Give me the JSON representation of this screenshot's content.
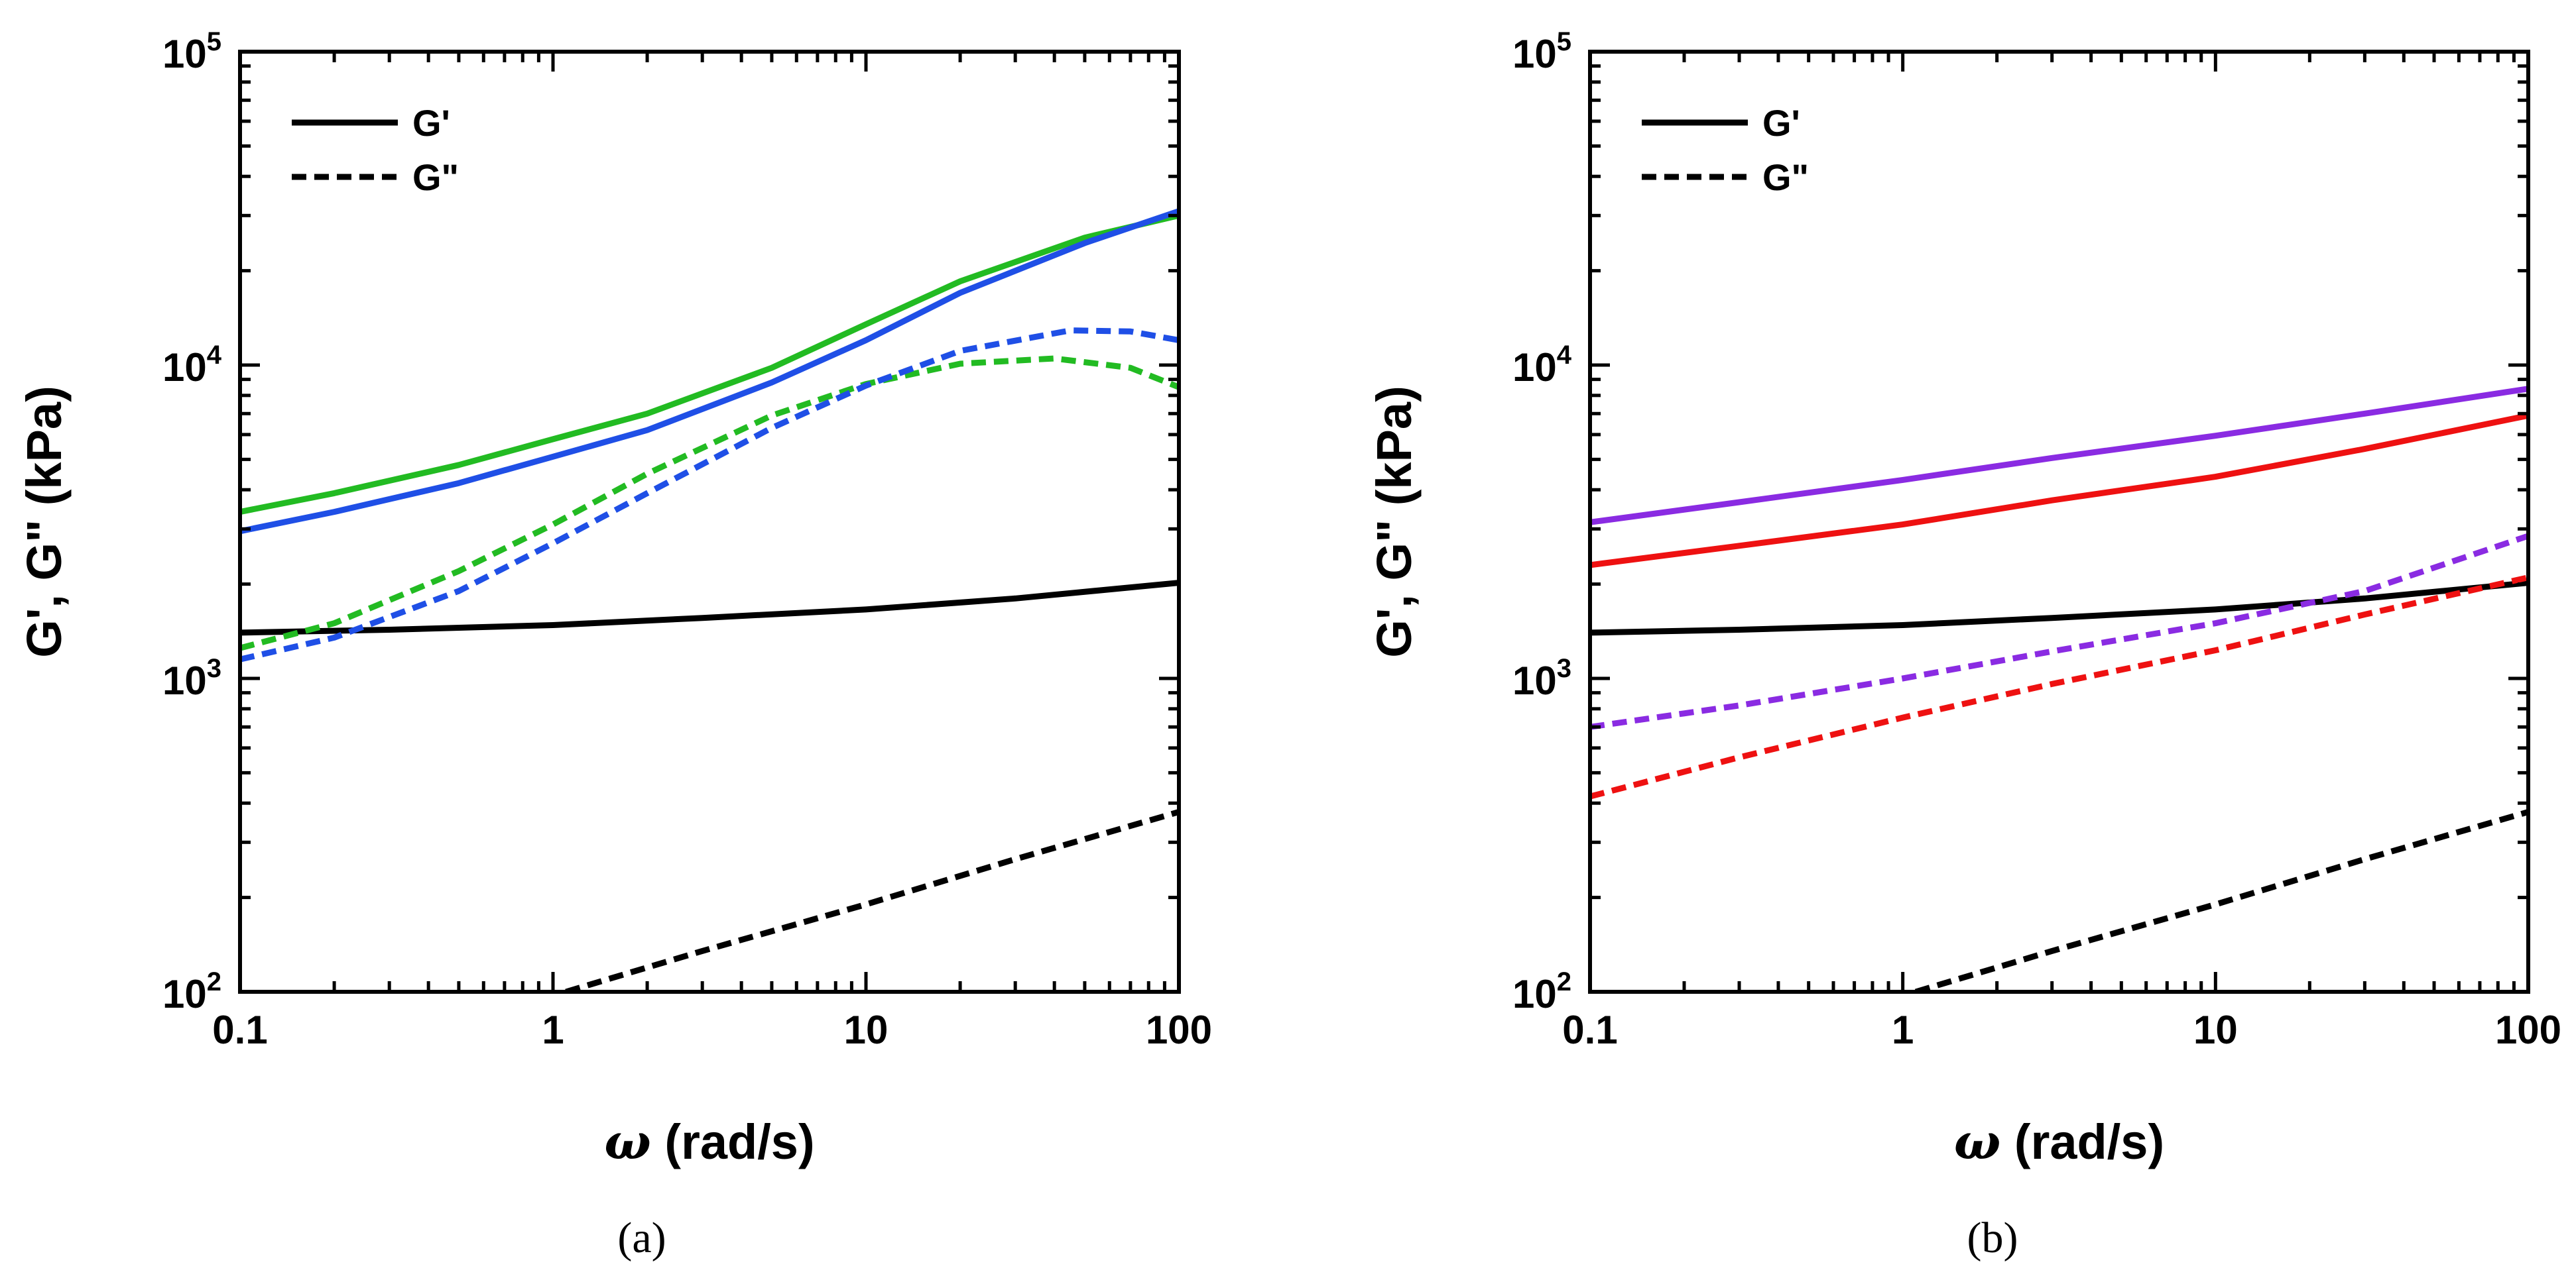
{
  "chart_data": [
    {
      "type": "line",
      "caption": "(a)",
      "xscale": "log",
      "yscale": "log",
      "xlabel_symbol": "ω",
      "xlabel_text": " (rad/s)",
      "ylabel": "G', G\" (kPa)",
      "xlim": [
        0.1,
        100
      ],
      "ylim": [
        100,
        100000
      ],
      "xticks": [
        {
          "value": 0.1,
          "label": "0.1"
        },
        {
          "value": 1,
          "label": "1"
        },
        {
          "value": 10,
          "label": "10"
        },
        {
          "value": 100,
          "label": "100"
        }
      ],
      "yticks": [
        {
          "value": 100,
          "base": "10",
          "exp": "2"
        },
        {
          "value": 1000,
          "base": "10",
          "exp": "3"
        },
        {
          "value": 10000,
          "base": "10",
          "exp": "4"
        },
        {
          "value": 100000,
          "base": "10",
          "exp": "5"
        }
      ],
      "legend": {
        "position": "top-left",
        "entries": [
          {
            "label": "G'",
            "style": "solid"
          },
          {
            "label": "G\"",
            "style": "dashed"
          }
        ]
      },
      "series": [
        {
          "name": "black G'",
          "color": "#000000",
          "style": "solid",
          "x": [
            0.1,
            0.3,
            1,
            3,
            10,
            30,
            100
          ],
          "y": [
            1400,
            1430,
            1480,
            1560,
            1660,
            1800,
            2020
          ]
        },
        {
          "name": "black G\"",
          "color": "#000000",
          "style": "dashed",
          "x": [
            1.1,
            3,
            10,
            30,
            100
          ],
          "y": [
            100,
            135,
            190,
            265,
            375
          ]
        },
        {
          "name": "green G'",
          "color": "#22bb22",
          "style": "solid",
          "x": [
            0.1,
            0.2,
            0.5,
            1,
            2,
            5,
            10,
            20,
            50,
            100
          ],
          "y": [
            3400,
            3900,
            4800,
            5800,
            7000,
            9800,
            13500,
            18500,
            25500,
            30000
          ]
        },
        {
          "name": "blue G'",
          "color": "#1f4fe6",
          "style": "solid",
          "x": [
            0.1,
            0.2,
            0.5,
            1,
            2,
            5,
            10,
            20,
            50,
            100
          ],
          "y": [
            2950,
            3400,
            4200,
            5100,
            6200,
            8800,
            12000,
            17000,
            24500,
            31000
          ]
        },
        {
          "name": "green G\"",
          "color": "#22bb22",
          "style": "dashed",
          "x": [
            0.1,
            0.2,
            0.5,
            1,
            2,
            5,
            10,
            20,
            40,
            70,
            100
          ],
          "y": [
            1250,
            1500,
            2200,
            3100,
            4500,
            6900,
            8700,
            10100,
            10500,
            9800,
            8500
          ]
        },
        {
          "name": "blue G\"",
          "color": "#1f4fe6",
          "style": "dashed",
          "x": [
            0.1,
            0.2,
            0.5,
            1,
            2,
            5,
            10,
            20,
            45,
            70,
            100
          ],
          "y": [
            1150,
            1350,
            1900,
            2700,
            3900,
            6300,
            8600,
            11100,
            12900,
            12800,
            12000
          ]
        }
      ]
    },
    {
      "type": "line",
      "caption": "(b)",
      "xscale": "log",
      "yscale": "log",
      "xlabel_symbol": "ω",
      "xlabel_text": " (rad/s)",
      "ylabel": "G', G\" (kPa)",
      "xlim": [
        0.1,
        100
      ],
      "ylim": [
        100,
        100000
      ],
      "xticks": [
        {
          "value": 0.1,
          "label": "0.1"
        },
        {
          "value": 1,
          "label": "1"
        },
        {
          "value": 10,
          "label": "10"
        },
        {
          "value": 100,
          "label": "100"
        }
      ],
      "yticks": [
        {
          "value": 100,
          "base": "10",
          "exp": "2"
        },
        {
          "value": 1000,
          "base": "10",
          "exp": "3"
        },
        {
          "value": 10000,
          "base": "10",
          "exp": "4"
        },
        {
          "value": 100000,
          "base": "10",
          "exp": "5"
        }
      ],
      "legend": {
        "position": "top-left",
        "entries": [
          {
            "label": "G'",
            "style": "solid"
          },
          {
            "label": "G\"",
            "style": "dashed"
          }
        ]
      },
      "series": [
        {
          "name": "black G'",
          "color": "#000000",
          "style": "solid",
          "x": [
            0.1,
            0.3,
            1,
            3,
            10,
            30,
            100
          ],
          "y": [
            1400,
            1430,
            1480,
            1560,
            1660,
            1800,
            2020
          ]
        },
        {
          "name": "black G\"",
          "color": "#000000",
          "style": "dashed",
          "x": [
            1.1,
            3,
            10,
            30,
            100
          ],
          "y": [
            100,
            135,
            190,
            265,
            375
          ]
        },
        {
          "name": "purple G'",
          "color": "#8a2be2",
          "style": "solid",
          "x": [
            0.1,
            0.3,
            1,
            3,
            10,
            30,
            100
          ],
          "y": [
            3150,
            3650,
            4300,
            5050,
            5950,
            7000,
            8400
          ]
        },
        {
          "name": "red G'",
          "color": "#ee1111",
          "style": "solid",
          "x": [
            0.1,
            0.3,
            1,
            3,
            10,
            30,
            100
          ],
          "y": [
            2300,
            2650,
            3100,
            3700,
            4400,
            5400,
            6900
          ]
        },
        {
          "name": "purple G\"",
          "color": "#8a2be2",
          "style": "dashed",
          "x": [
            0.1,
            0.3,
            1,
            3,
            10,
            30,
            100
          ],
          "y": [
            700,
            820,
            1000,
            1220,
            1500,
            1900,
            2850
          ]
        },
        {
          "name": "red G\"",
          "color": "#ee1111",
          "style": "dashed",
          "x": [
            0.1,
            0.3,
            1,
            3,
            10,
            30,
            100
          ],
          "y": [
            420,
            560,
            750,
            960,
            1230,
            1600,
            2100
          ]
        }
      ]
    }
  ]
}
